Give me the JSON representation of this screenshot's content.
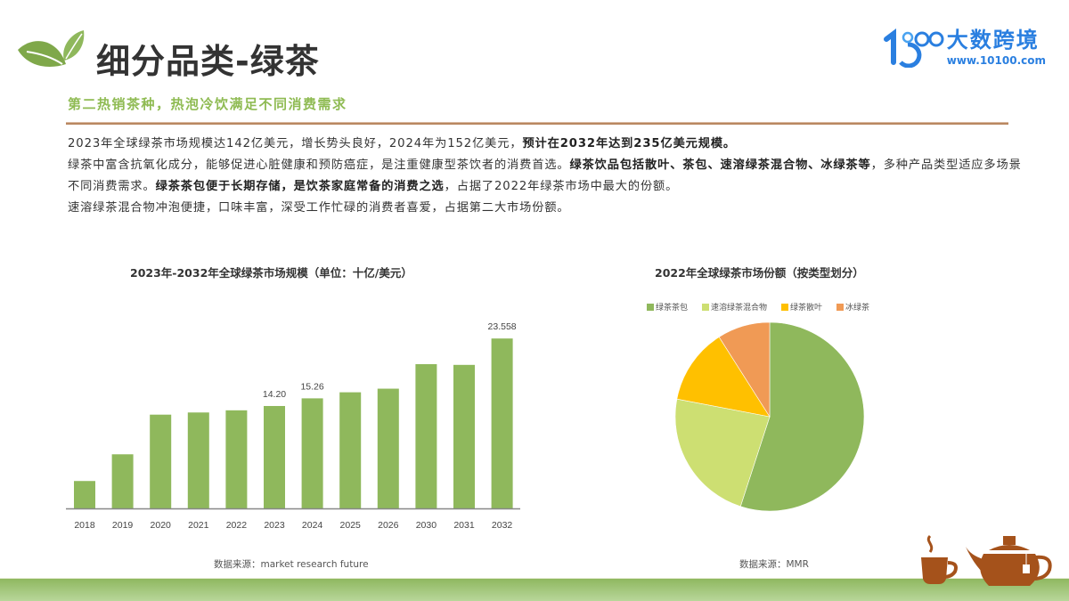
{
  "header": {
    "title": "细分品类-绿茶",
    "subtitle": "第二热销茶种，热泡冷饮满足不同消费需求",
    "brand": {
      "name": "大数跨境",
      "url": "www.10100.com",
      "mark": "10100-logo",
      "color": "#2a7fe0"
    },
    "logo_icon": "leaf-icon"
  },
  "body": {
    "p1_a": "2023年全球绿茶市场规模达142亿美元，增长势头良好，2024年为152亿美元，",
    "p1_b": "预计在2032年达到235亿美元规模。",
    "p2_a": "绿茶中富含抗氧化成分，能够促进心脏健康和预防癌症，是注重健康型茶饮者的消费首选。",
    "p2_b": "绿茶饮品包括散叶、茶包、速溶绿茶混合物、冰绿茶等",
    "p2_c": "，多种产品类型适应多场景不同消费需求。",
    "p2_d": "绿茶茶包便于长期存储，是饮茶家庭常备的消费之选",
    "p2_e": "，占据了2022年绿茶市场中最大的份额。",
    "p3": "速溶绿茶混合物冲泡便捷，口味丰富，深受工作忙碌的消费者喜爱，占据第二大市场份额。"
  },
  "bar_chart": {
    "title": "2023年-2032年全球绿茶市场规模（单位：十亿/美元）",
    "source": "数据来源：market research future"
  },
  "pie_chart": {
    "title": "2022年全球绿茶市场份额（按类型划分）",
    "source": "数据来源：MMR"
  },
  "chart_data": [
    {
      "type": "bar",
      "title": "2023年-2032年全球绿茶市场规模（单位：十亿/美元）",
      "categories": [
        "2018",
        "2019",
        "2020",
        "2021",
        "2022",
        "2023",
        "2024",
        "2025",
        "2026",
        "2030",
        "2031",
        "2032"
      ],
      "values": [
        3.8,
        7.5,
        13.0,
        13.3,
        13.6,
        14.2,
        15.26,
        16.1,
        16.6,
        20.0,
        19.9,
        23.558
      ],
      "data_labels": {
        "2023": "14.20",
        "2024": "15.26",
        "2032": "23.558"
      },
      "xlabel": "",
      "ylabel": "",
      "ylim": [
        0,
        25
      ],
      "grid": false,
      "color": "#8fb85c"
    },
    {
      "type": "pie",
      "title": "2022年全球绿茶市场份额（按类型划分）",
      "categories": [
        "绿茶茶包",
        "速溶绿茶混合物",
        "绿茶散叶",
        "冰绿茶"
      ],
      "values": [
        55,
        23,
        13,
        9
      ],
      "colors": [
        "#8fb85c",
        "#cddf72",
        "#ffc000",
        "#f09a55"
      ],
      "legend_position": "top",
      "start_angle": 0,
      "direction": "clockwise"
    }
  ]
}
